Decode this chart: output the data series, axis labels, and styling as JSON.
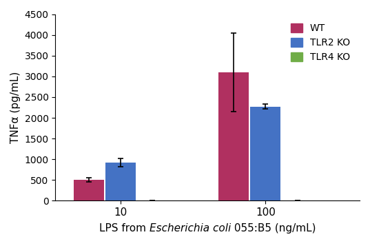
{
  "groups": [
    "10",
    "100"
  ],
  "series": [
    "WT",
    "TLR2 KO",
    "TLR4 KO"
  ],
  "values": {
    "WT": [
      510,
      3100
    ],
    "TLR2 KO": [
      925,
      2270
    ],
    "TLR4 KO": [
      5,
      5
    ]
  },
  "errors": {
    "WT": [
      50,
      950
    ],
    "TLR2 KO": [
      100,
      55
    ],
    "TLR4 KO": [
      3,
      3
    ]
  },
  "colors": {
    "WT": "#b03060",
    "TLR2 KO": "#4472c4",
    "TLR4 KO": "#70ad47"
  },
  "ylabel": "TNFα (pg/mL)",
  "ylim": [
    0,
    4500
  ],
  "yticks": [
    0,
    500,
    1000,
    1500,
    2000,
    2500,
    3000,
    3500,
    4000,
    4500
  ],
  "bar_width": 0.22,
  "background_color": "#ffffff",
  "figsize": [
    5.37,
    3.6
  ],
  "dpi": 100
}
